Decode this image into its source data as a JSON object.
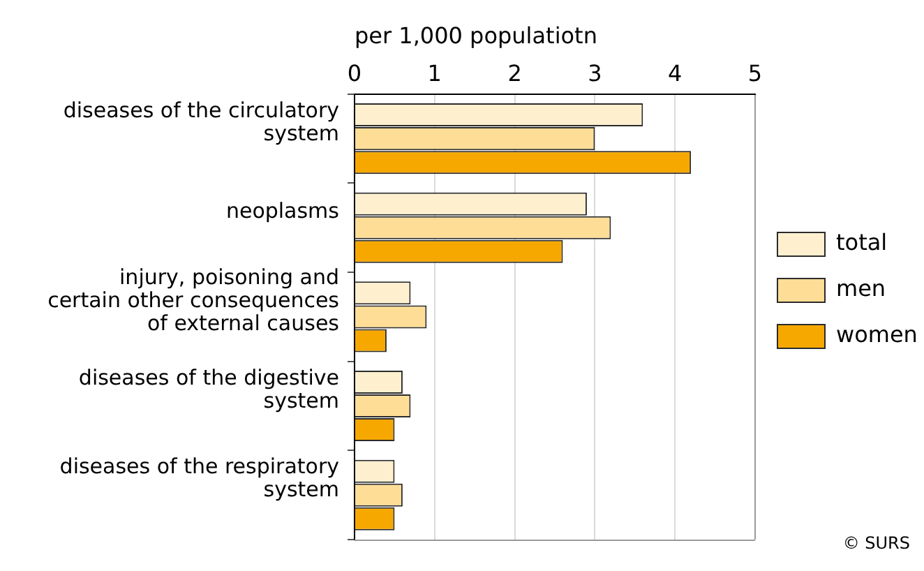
{
  "chart_data": {
    "type": "bar",
    "orientation": "horizontal",
    "xlabel": "per 1,000 populatiotn",
    "categories": [
      "diseases of the circulatory system",
      "neoplasms",
      "injury, poisoning and certain other consequences of external causes",
      "diseases of the digestive system",
      "diseases of the respiratory system"
    ],
    "series": [
      {
        "name": "total",
        "color": "#fef0cf",
        "values": [
          3.6,
          2.9,
          0.7,
          0.6,
          0.5
        ]
      },
      {
        "name": "men",
        "color": "#fedd96",
        "values": [
          3.0,
          3.2,
          0.9,
          0.7,
          0.6
        ]
      },
      {
        "name": "women",
        "color": "#f7a800",
        "values": [
          4.2,
          2.6,
          0.4,
          0.5,
          0.5
        ]
      }
    ],
    "xlim": [
      0,
      5
    ],
    "xticks": [
      0,
      1,
      2,
      3,
      4,
      5
    ],
    "grid": "x",
    "legend": "right",
    "annotations": [
      "© SURS"
    ]
  }
}
